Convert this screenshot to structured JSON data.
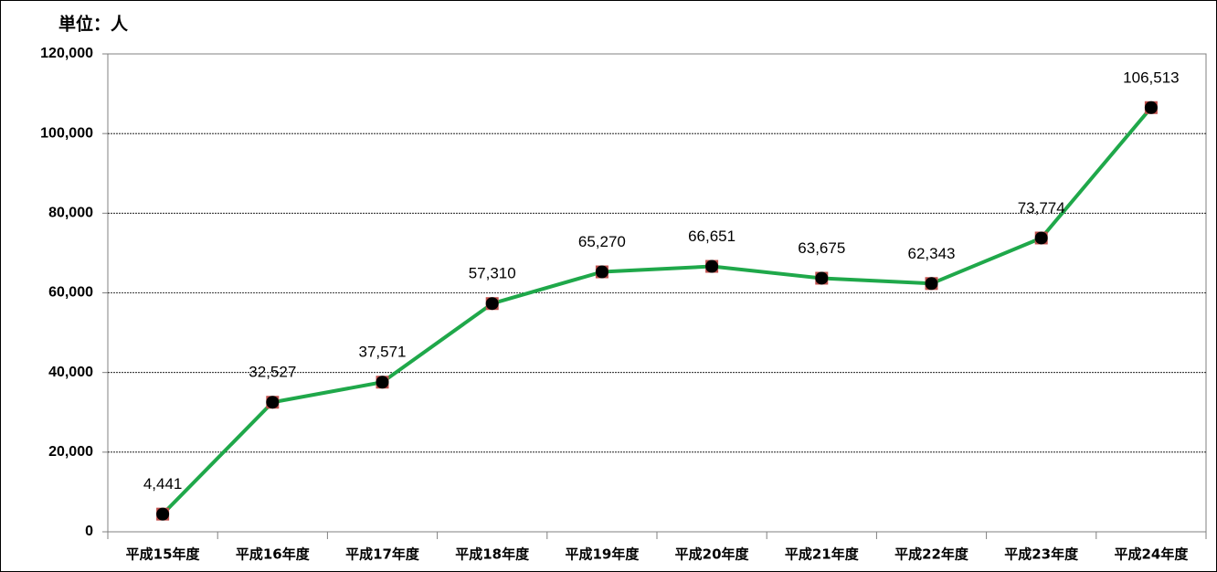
{
  "chart_data": {
    "type": "line",
    "unit_label": "単位：人",
    "categories": [
      "平成15年度",
      "平成16年度",
      "平成17年度",
      "平成18年度",
      "平成19年度",
      "平成20年度",
      "平成21年度",
      "平成22年度",
      "平成23年度",
      "平成24年度"
    ],
    "values": [
      4441,
      32527,
      37571,
      57310,
      65270,
      66651,
      63675,
      62343,
      73774,
      106513
    ],
    "value_labels": [
      "4,441",
      "32,527",
      "37,571",
      "57,310",
      "65,270",
      "66,651",
      "63,675",
      "62,343",
      "73,774",
      "106,513"
    ],
    "color": "#1fa84a",
    "marker_color": "#000000",
    "ylim": [
      0,
      120000
    ],
    "yticks": [
      0,
      {
        "value": 20000,
        "label": "20,000"
      },
      {
        "value": 40000,
        "label": "40,000"
      },
      {
        "value": 60000,
        "label": "60,000"
      },
      {
        "value": 80000,
        "label": "80,000"
      },
      {
        "value": 100000,
        "label": "100,000"
      },
      {
        "value": 120000,
        "label": "120,000"
      }
    ],
    "grid": true
  }
}
